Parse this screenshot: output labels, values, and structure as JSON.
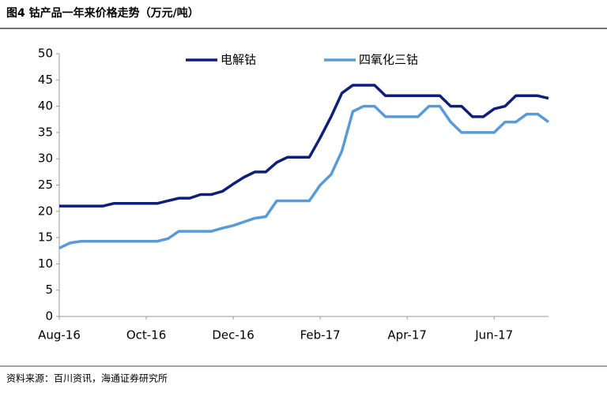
{
  "chart_data": {
    "type": "line",
    "title": "图4  钴产品一年来价格走势（万元/吨）",
    "source": "资料来源：百川资讯，海通证券研究所",
    "categories": [
      "Aug-16",
      null,
      null,
      null,
      null,
      null,
      null,
      null,
      "Oct-16",
      null,
      null,
      null,
      null,
      null,
      null,
      null,
      "Dec-16",
      null,
      null,
      null,
      null,
      null,
      null,
      null,
      "Feb-17",
      null,
      null,
      null,
      null,
      null,
      null,
      null,
      "Apr-17",
      null,
      null,
      null,
      null,
      null,
      null,
      null,
      "Jun-17",
      null,
      null,
      null,
      null,
      null
    ],
    "series": [
      {
        "name": "电解钴",
        "color": "#0f1e78",
        "values": [
          21,
          21,
          21,
          21,
          21,
          21.5,
          21.5,
          21.5,
          21.5,
          21.5,
          22,
          22.5,
          22.5,
          23.2,
          23.2,
          23.8,
          25.2,
          26.5,
          27.5,
          27.5,
          29.3,
          30.3,
          30.3,
          30.3,
          34,
          38,
          42.5,
          44,
          44,
          44,
          42,
          42,
          42,
          42,
          42,
          42,
          40,
          40,
          38,
          38,
          39.5,
          40,
          42,
          42,
          42,
          41.5
        ]
      },
      {
        "name": "四氧化三钴",
        "color": "#5b9bd5",
        "values": [
          13,
          14,
          14.3,
          14.3,
          14.3,
          14.3,
          14.3,
          14.3,
          14.3,
          14.3,
          14.8,
          16.2,
          16.2,
          16.2,
          16.2,
          16.8,
          17.3,
          18,
          18.7,
          19,
          22,
          22,
          22,
          22,
          25,
          27,
          31.5,
          39,
          40,
          40,
          38,
          38,
          38,
          38,
          40,
          40,
          37,
          35,
          35,
          35,
          35,
          37,
          37,
          38.5,
          38.5,
          37
        ]
      }
    ],
    "ylim": [
      0,
      50
    ],
    "yticks": [
      0,
      5,
      10,
      15,
      20,
      25,
      30,
      35,
      40,
      45,
      50
    ],
    "grid": false,
    "legend": "top"
  }
}
